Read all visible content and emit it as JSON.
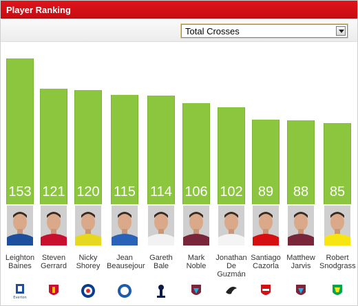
{
  "header": {
    "title": "Player Ranking"
  },
  "stat_select": {
    "selected": "Total Crosses"
  },
  "chart_data": {
    "type": "bar",
    "categories": [
      "Leighton Baines",
      "Steven Gerrard",
      "Nicky Shorey",
      "Jean Beausejour",
      "Gareth Bale",
      "Mark Noble",
      "Jonathan De Guzmán",
      "Santiago Cazorla",
      "Matthew Jarvis",
      "Robert Snodgrass"
    ],
    "values": [
      153,
      121,
      120,
      115,
      114,
      106,
      102,
      89,
      88,
      85
    ],
    "ylim": [
      0,
      153
    ]
  },
  "players": [
    {
      "name": "Leighton\nBaines",
      "value": "153",
      "club_icon": "everton-badge-icon",
      "kit": "#1d4f9c",
      "club_label": "Everton"
    },
    {
      "name": "Steven\nGerrard",
      "value": "121",
      "club_icon": "liverpool-badge-icon",
      "kit": "#c8102e"
    },
    {
      "name": "Nicky\nShorey",
      "value": "120",
      "club_icon": "reading-badge-icon",
      "kit": "#e6d81e"
    },
    {
      "name": "Jean\nBeausejour",
      "value": "115",
      "club_icon": "wigan-badge-icon",
      "kit": "#2a62b8"
    },
    {
      "name": "Gareth\nBale",
      "value": "114",
      "club_icon": "tottenham-badge-icon",
      "kit": "#f2f2f2"
    },
    {
      "name": "Mark\nNoble",
      "value": "106",
      "club_icon": "west-ham-badge-icon",
      "kit": "#7a263a"
    },
    {
      "name": "Jonathan\nDe\nGuzmán",
      "value": "102",
      "club_icon": "swansea-badge-icon",
      "kit": "#f4f4f4"
    },
    {
      "name": "Santiago\nCazorla",
      "value": "89",
      "club_icon": "arsenal-badge-icon",
      "kit": "#d50f12"
    },
    {
      "name": "Matthew\nJarvis",
      "value": "88",
      "club_icon": "west-ham-badge-icon",
      "kit": "#7a263a"
    },
    {
      "name": "Robert\nSnodgrass",
      "value": "85",
      "club_icon": "norwich-badge-icon",
      "kit": "#f6e511"
    }
  ],
  "colors": {
    "header": "#d7141a",
    "bar": "#8cc63f",
    "bar_text": "#ffffff"
  }
}
